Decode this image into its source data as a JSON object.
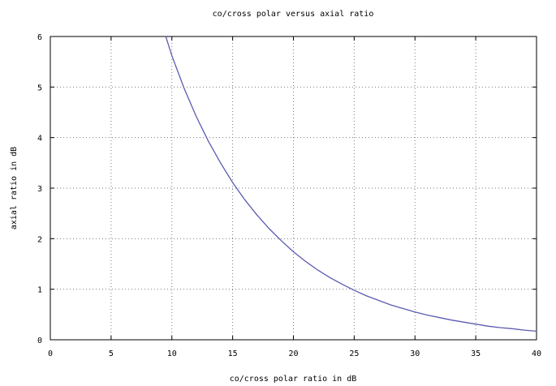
{
  "chart_data": {
    "type": "line",
    "title": "co/cross polar versus axial ratio",
    "xlabel": "co/cross polar ratio in dB",
    "ylabel": "axial ratio in dB",
    "xlim": [
      0,
      40
    ],
    "ylim": [
      0,
      6
    ],
    "x_ticks": [
      0,
      5,
      10,
      15,
      20,
      25,
      30,
      35,
      40
    ],
    "y_ticks": [
      0,
      1,
      2,
      3,
      4,
      5,
      6
    ],
    "grid": true,
    "legend": "none",
    "series": [
      {
        "color": "#5b5bb0",
        "x": [
          9.5,
          10,
          11,
          12,
          13,
          14,
          15,
          16,
          17,
          18,
          19,
          20,
          21,
          22,
          23,
          24,
          25,
          26,
          27,
          28,
          29,
          30,
          31,
          32,
          33,
          34,
          35,
          36,
          37,
          38,
          39,
          40
        ],
        "y": [
          6.0,
          5.62,
          4.98,
          4.42,
          3.93,
          3.5,
          3.11,
          2.77,
          2.47,
          2.2,
          1.96,
          1.74,
          1.55,
          1.38,
          1.23,
          1.1,
          0.98,
          0.87,
          0.78,
          0.69,
          0.62,
          0.55,
          0.49,
          0.44,
          0.39,
          0.35,
          0.31,
          0.27,
          0.24,
          0.22,
          0.19,
          0.17
        ]
      }
    ]
  }
}
